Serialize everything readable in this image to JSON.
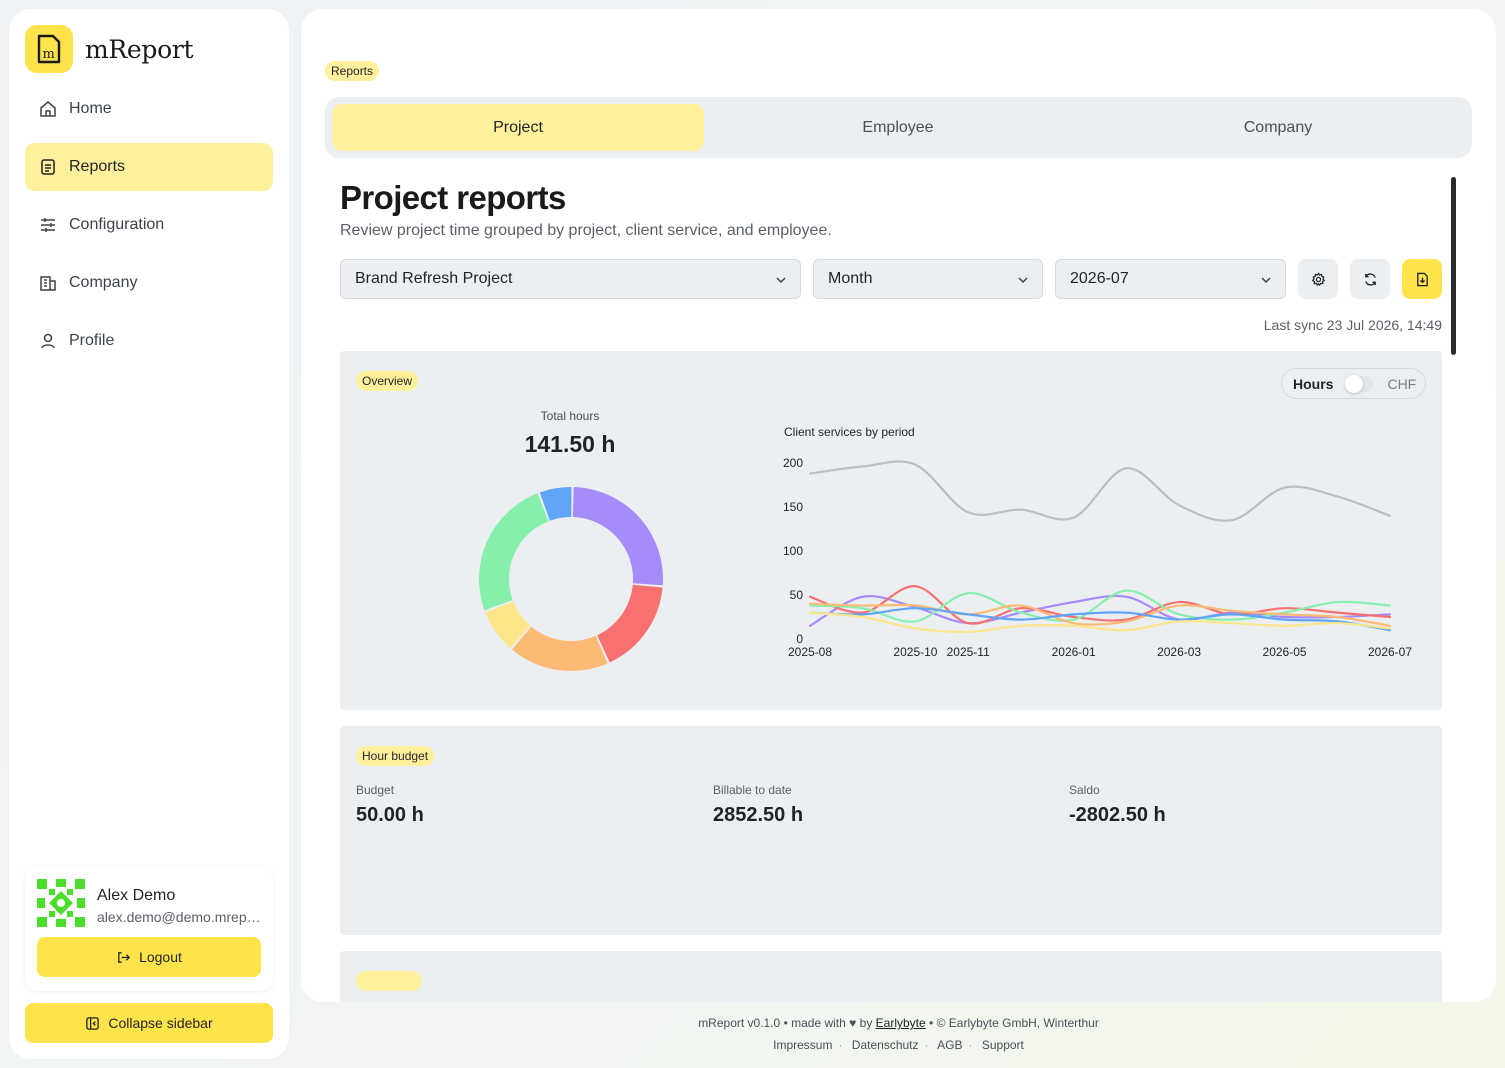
{
  "app": {
    "name": "mReport"
  },
  "sidebar": {
    "items": [
      {
        "label": "Home",
        "icon": "home-icon"
      },
      {
        "label": "Reports",
        "icon": "reports-icon",
        "active": true
      },
      {
        "label": "Configuration",
        "icon": "sliders-icon"
      },
      {
        "label": "Company",
        "icon": "building-icon"
      },
      {
        "label": "Profile",
        "icon": "user-icon"
      }
    ],
    "user": {
      "name": "Alex Demo",
      "email": "alex.demo@demo.mreport.ch"
    },
    "logout_label": "Logout",
    "collapse_label": "Collapse sidebar"
  },
  "breadcrumb": "Reports",
  "tabs": [
    {
      "label": "Project",
      "active": true
    },
    {
      "label": "Employee"
    },
    {
      "label": "Company"
    }
  ],
  "page": {
    "title": "Project reports",
    "subtitle": "Review project time grouped by project, client service, and employee.",
    "filters": {
      "project": "Brand Refresh Project",
      "granularity": "Month",
      "period": "2026-07"
    },
    "last_sync": "Last sync 23 Jul 2026, 14:49"
  },
  "overview": {
    "badge": "Overview",
    "toggle": {
      "on_label": "Hours",
      "off_label": "CHF"
    },
    "total_label": "Total hours",
    "total_value": "141.50 h"
  },
  "budget": {
    "badge": "Hour budget",
    "items": [
      {
        "label": "Budget",
        "value": "50.00 h"
      },
      {
        "label": "Billable to date",
        "value": "2852.50 h"
      },
      {
        "label": "Saldo",
        "value": "-2802.50 h"
      }
    ]
  },
  "footer": {
    "version": "mReport v0.1.0",
    "made_with": "made with",
    "by": "by",
    "author": "Earlybyte",
    "copyright": "© Earlybyte GmbH, Winterthur",
    "links": [
      "Impressum",
      "Datenschutz",
      "AGB",
      "Support"
    ]
  },
  "colors": {
    "accent": "#ffe34a",
    "accent_light": "#fff09b",
    "panel": "#eceff2"
  },
  "chart_data": [
    {
      "type": "pie",
      "title": "",
      "segments": [
        {
          "value": 26,
          "color": "#a78bfa"
        },
        {
          "value": 17,
          "color": "#f87171"
        },
        {
          "value": 18,
          "color": "#fdba74"
        },
        {
          "value": 8,
          "color": "#fde68a"
        },
        {
          "value": 25,
          "color": "#86efac"
        },
        {
          "value": 6,
          "color": "#60a5fa"
        }
      ]
    },
    {
      "type": "line",
      "title": "Client services by period",
      "x": [
        "2025-08",
        "2025-09",
        "2025-10",
        "2025-11",
        "2025-12",
        "2026-01",
        "2026-02",
        "2026-03",
        "2026-04",
        "2026-05",
        "2026-06",
        "2026-07"
      ],
      "x_ticks": [
        "2025-08",
        "2025-10",
        "2025-11",
        "2026-01",
        "2026-03",
        "2026-05",
        "2026-07"
      ],
      "ylim": [
        0,
        200
      ],
      "y_ticks": [
        0,
        50,
        100,
        150,
        200
      ],
      "series": [
        {
          "color": "#bdbdbd",
          "values": [
            188,
            196,
            198,
            144,
            147,
            138,
            194,
            152,
            135,
            172,
            162,
            140
          ]
        },
        {
          "color": "#a78bfa",
          "values": [
            15,
            48,
            36,
            18,
            30,
            42,
            48,
            22,
            30,
            25,
            25,
            28
          ]
        },
        {
          "color": "#f87171",
          "values": [
            48,
            30,
            60,
            18,
            35,
            25,
            22,
            42,
            28,
            35,
            30,
            25
          ]
        },
        {
          "color": "#86efac",
          "values": [
            38,
            35,
            20,
            52,
            30,
            22,
            55,
            28,
            22,
            30,
            42,
            38
          ]
        },
        {
          "color": "#fdba74",
          "values": [
            40,
            38,
            38,
            28,
            38,
            18,
            20,
            38,
            32,
            28,
            25,
            15
          ]
        },
        {
          "color": "#60a5fa",
          "values": [
            30,
            28,
            35,
            28,
            22,
            28,
            30,
            22,
            28,
            22,
            20,
            10
          ]
        },
        {
          "color": "#fde68a",
          "values": [
            30,
            25,
            12,
            8,
            15,
            15,
            10,
            20,
            18,
            15,
            18,
            12
          ]
        }
      ]
    }
  ]
}
